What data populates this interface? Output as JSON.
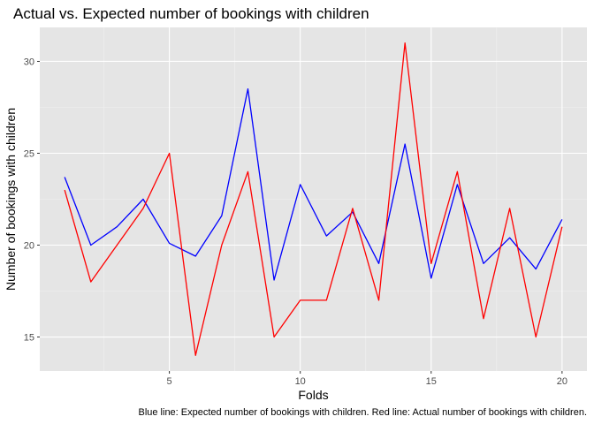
{
  "chart_data": {
    "type": "line",
    "title": "Actual vs. Expected number of bookings with children",
    "xlabel": "Folds",
    "ylabel": "Number of bookings with children",
    "caption": "Blue line: Expected number of bookings with children. Red line: Actual number of bookings with children.",
    "x": [
      1,
      2,
      3,
      4,
      5,
      6,
      7,
      8,
      9,
      10,
      11,
      12,
      13,
      14,
      15,
      16,
      17,
      18,
      19,
      20
    ],
    "series": [
      {
        "color": "#0000ff",
        "values": [
          23.7,
          20.0,
          21.0,
          22.5,
          20.1,
          19.4,
          21.6,
          28.5,
          18.1,
          23.3,
          20.5,
          21.8,
          19.0,
          25.5,
          18.2,
          23.3,
          19.0,
          20.4,
          18.7,
          21.4
        ]
      },
      {
        "color": "#ff0000",
        "values": [
          23,
          18,
          20,
          22,
          25,
          14,
          20,
          24,
          15,
          17,
          17,
          22,
          17,
          31,
          19,
          24,
          16,
          22,
          15,
          21
        ]
      }
    ],
    "x_ticks": [
      5,
      10,
      15,
      20
    ],
    "y_ticks": [
      15,
      20,
      25,
      30
    ],
    "xlim": [
      0.05,
      20.95
    ],
    "ylim": [
      13.15,
      31.85
    ],
    "grid": true,
    "legend": "none",
    "panel_background": "#e5e5e5"
  }
}
